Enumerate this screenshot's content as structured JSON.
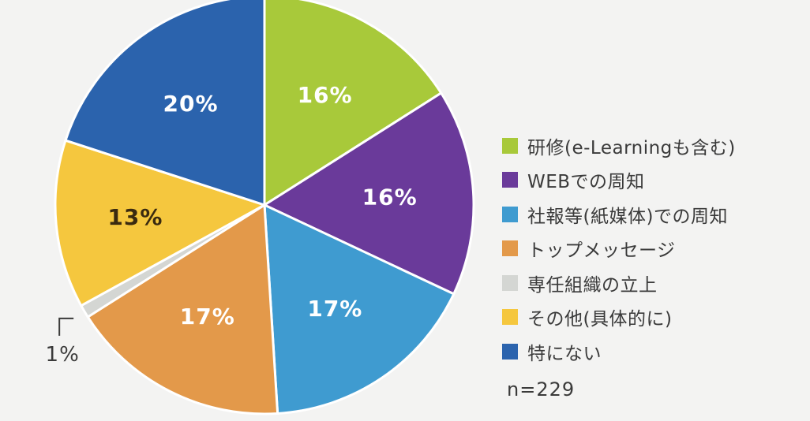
{
  "chart_data": {
    "type": "pie",
    "sample_size": "n=229",
    "slices": [
      {
        "name": "研修(e-Learningも含む)",
        "value": 16,
        "label": "16%",
        "color": "#a8c93a",
        "label_color": "#ffffff"
      },
      {
        "name": "WEBでの周知",
        "value": 16,
        "label": "16%",
        "color": "#6a3a9a",
        "label_color": "#ffffff"
      },
      {
        "name": "社報等(紙媒体)での周知",
        "value": 17,
        "label": "17%",
        "color": "#3f9bd0",
        "label_color": "#ffffff"
      },
      {
        "name": "トップメッセージ",
        "value": 17,
        "label": "17%",
        "color": "#e3994a",
        "label_color": "#ffffff"
      },
      {
        "name": "専任組織の立上",
        "value": 1,
        "label": "1%",
        "color": "#d4d6d3",
        "label_color": "#3a3a3a"
      },
      {
        "name": "その他(具体的に)",
        "value": 13,
        "label": "13%",
        "color": "#f5c73e",
        "label_color": "#3a2a10"
      },
      {
        "name": "特にない",
        "value": 20,
        "label": "20%",
        "color": "#2b63ad",
        "label_color": "#ffffff"
      }
    ]
  }
}
